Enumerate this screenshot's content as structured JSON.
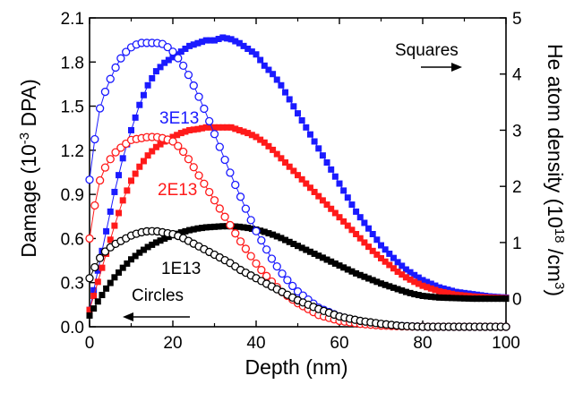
{
  "chart_data": {
    "type": "scatter",
    "xlabel": "Depth (nm)",
    "ylabel_left": {
      "main": "Damage (10",
      "sup": "-3",
      "tail": " DPA)"
    },
    "ylabel_right": {
      "main": "He atom density (10",
      "sup1": "18",
      "mid": " /cm",
      "sup2": "3",
      "tail": ")"
    },
    "xlim": [
      0,
      100
    ],
    "ylim_left": [
      0,
      2.1
    ],
    "ylim_right": [
      -0.5,
      5
    ],
    "x_ticks": [
      "0",
      "20",
      "40",
      "60",
      "80",
      "100"
    ],
    "y_left_ticks": [
      "0.0",
      "0.3",
      "0.6",
      "0.9",
      "1.2",
      "1.5",
      "1.8",
      "2.1"
    ],
    "y_right_ticks": [
      "0",
      "1",
      "2",
      "3",
      "4",
      "5"
    ],
    "annotations": {
      "squares": "Squares",
      "circles": "Circles",
      "label_3e13": "3E13",
      "label_2e13": "2E13",
      "label_1e13": "1E13"
    },
    "colors": {
      "3E13": "#1a1aff",
      "2E13": "#ff1a1a",
      "1E13": "#000000"
    },
    "damage_curves_circles": [
      {
        "name": "3E13",
        "axis": "left",
        "peak_x": 15,
        "peak_y": 1.93,
        "x": [
          0,
          2,
          4,
          6,
          8,
          10,
          12,
          14,
          16,
          18,
          20,
          22,
          24,
          26,
          28,
          30,
          32,
          34,
          36,
          38,
          40,
          42,
          44,
          46,
          48,
          50,
          55,
          60,
          65,
          70,
          75,
          80,
          85,
          90,
          95,
          100
        ],
        "y": [
          1.0,
          1.44,
          1.62,
          1.75,
          1.85,
          1.9,
          1.93,
          1.93,
          1.93,
          1.92,
          1.87,
          1.8,
          1.7,
          1.58,
          1.45,
          1.31,
          1.17,
          1.03,
          0.9,
          0.77,
          0.65,
          0.55,
          0.45,
          0.37,
          0.3,
          0.24,
          0.13,
          0.07,
          0.035,
          0.015,
          0.005,
          0.0,
          0.0,
          0.0,
          0.0,
          0.0
        ]
      },
      {
        "name": "2E13",
        "axis": "left",
        "peak_x": 16,
        "peak_y": 1.29,
        "x": [
          0,
          2,
          4,
          6,
          8,
          10,
          12,
          14,
          16,
          18,
          20,
          22,
          24,
          26,
          28,
          30,
          32,
          34,
          36,
          38,
          40,
          42,
          44,
          46,
          48,
          50,
          55,
          60,
          65,
          70,
          75,
          80,
          85,
          90,
          95,
          100
        ],
        "y": [
          0.6,
          0.96,
          1.1,
          1.18,
          1.23,
          1.27,
          1.28,
          1.29,
          1.29,
          1.28,
          1.26,
          1.21,
          1.13,
          1.04,
          0.95,
          0.86,
          0.77,
          0.68,
          0.59,
          0.51,
          0.43,
          0.36,
          0.3,
          0.24,
          0.2,
          0.16,
          0.08,
          0.04,
          0.02,
          0.008,
          0.003,
          0.0,
          0.0,
          0.0,
          0.0,
          0.0
        ]
      },
      {
        "name": "1E13",
        "axis": "left",
        "peak_x": 16,
        "peak_y": 0.65,
        "x": [
          0,
          2,
          4,
          6,
          8,
          10,
          12,
          14,
          16,
          18,
          20,
          22,
          24,
          26,
          28,
          30,
          32,
          34,
          36,
          38,
          40,
          42,
          44,
          46,
          48,
          50,
          55,
          60,
          65,
          70,
          75,
          80,
          85,
          90,
          95,
          100
        ],
        "y": [
          0.33,
          0.45,
          0.52,
          0.56,
          0.59,
          0.62,
          0.64,
          0.65,
          0.65,
          0.64,
          0.63,
          0.61,
          0.58,
          0.55,
          0.52,
          0.49,
          0.46,
          0.43,
          0.39,
          0.36,
          0.33,
          0.3,
          0.27,
          0.24,
          0.21,
          0.18,
          0.12,
          0.07,
          0.04,
          0.02,
          0.005,
          0.0,
          0.0,
          0.0,
          0.0,
          0.0
        ]
      }
    ],
    "he_density_curves_squares": [
      {
        "name": "3E13",
        "axis": "right",
        "x": [
          0,
          2,
          4,
          6,
          8,
          10,
          12,
          14,
          16,
          18,
          20,
          22,
          24,
          26,
          28,
          30,
          32,
          34,
          36,
          38,
          40,
          42,
          44,
          46,
          48,
          50,
          52,
          54,
          56,
          58,
          60,
          62,
          64,
          66,
          68,
          70,
          72,
          74,
          76,
          78,
          80,
          84,
          88,
          92,
          96,
          100
        ],
        "y": [
          -0.2,
          0.5,
          1.2,
          1.9,
          2.5,
          3.0,
          3.45,
          3.8,
          4.05,
          4.2,
          4.3,
          4.4,
          4.5,
          4.55,
          4.6,
          4.6,
          4.65,
          4.62,
          4.55,
          4.45,
          4.35,
          4.15,
          4.0,
          3.8,
          3.55,
          3.3,
          3.05,
          2.8,
          2.55,
          2.3,
          2.05,
          1.8,
          1.55,
          1.35,
          1.15,
          0.95,
          0.8,
          0.65,
          0.52,
          0.42,
          0.33,
          0.2,
          0.12,
          0.08,
          0.04,
          0.02
        ]
      },
      {
        "name": "2E13",
        "axis": "right",
        "x": [
          0,
          2,
          4,
          6,
          8,
          10,
          12,
          14,
          16,
          18,
          20,
          22,
          24,
          26,
          28,
          30,
          32,
          34,
          36,
          38,
          40,
          42,
          44,
          46,
          48,
          50,
          52,
          54,
          56,
          58,
          60,
          62,
          64,
          66,
          68,
          70,
          72,
          74,
          76,
          78,
          80,
          84,
          88,
          92,
          96,
          100
        ],
        "y": [
          -0.2,
          0.3,
          0.8,
          1.3,
          1.75,
          2.1,
          2.35,
          2.55,
          2.7,
          2.8,
          2.88,
          2.95,
          3.0,
          3.02,
          3.05,
          3.05,
          3.05,
          3.05,
          3.0,
          2.95,
          2.88,
          2.78,
          2.65,
          2.5,
          2.35,
          2.2,
          2.05,
          1.9,
          1.75,
          1.6,
          1.45,
          1.3,
          1.15,
          1.0,
          0.85,
          0.72,
          0.6,
          0.48,
          0.38,
          0.3,
          0.23,
          0.13,
          0.07,
          0.04,
          0.02,
          0.01
        ]
      },
      {
        "name": "1E13",
        "axis": "right",
        "x": [
          0,
          2,
          4,
          6,
          8,
          10,
          12,
          14,
          16,
          18,
          20,
          22,
          24,
          26,
          28,
          30,
          32,
          34,
          36,
          38,
          40,
          42,
          44,
          46,
          48,
          50,
          52,
          54,
          56,
          58,
          60,
          62,
          64,
          66,
          68,
          70,
          72,
          74,
          76,
          78,
          80,
          84,
          88,
          92,
          96,
          100
        ],
        "y": [
          -0.3,
          -0.05,
          0.18,
          0.38,
          0.55,
          0.7,
          0.82,
          0.92,
          1.0,
          1.07,
          1.13,
          1.18,
          1.22,
          1.25,
          1.27,
          1.28,
          1.29,
          1.29,
          1.28,
          1.26,
          1.23,
          1.19,
          1.14,
          1.08,
          1.01,
          0.94,
          0.87,
          0.8,
          0.73,
          0.66,
          0.59,
          0.52,
          0.45,
          0.39,
          0.33,
          0.27,
          0.22,
          0.17,
          0.12,
          0.08,
          0.05,
          0.02,
          0.01,
          0.0,
          0.0,
          0.0
        ]
      }
    ]
  }
}
